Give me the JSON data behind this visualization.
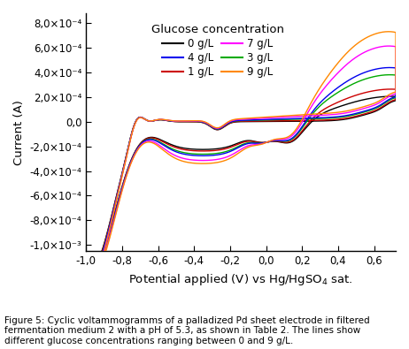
{
  "xlabel": "Potential applied (V) vs Hg/HgSO$_4$ sat.",
  "ylabel": "Current (A)",
  "xlim": [
    -1.0,
    0.72
  ],
  "ylim": [
    -0.00105,
    0.00088
  ],
  "xticks": [
    -1.0,
    -0.8,
    -0.6,
    -0.4,
    -0.2,
    0.0,
    0.2,
    0.4,
    0.6
  ],
  "yticks": [
    -0.001,
    -0.0008,
    -0.0006,
    -0.0004,
    -0.0002,
    0.0,
    0.0002,
    0.0004,
    0.0006,
    0.0008
  ],
  "xtick_labels": [
    "-1,0",
    "-0,8",
    "-0,6",
    "-0,4",
    "-0,2",
    "0,0",
    "0,2",
    "0,4",
    "0,6"
  ],
  "legend_title": "Glucose concentration",
  "legend_entries": [
    [
      "0 g/L",
      "#000000"
    ],
    [
      "4 g/L",
      "#0000ee"
    ],
    [
      "1 g/L",
      "#cc0000"
    ],
    [
      "7 g/L",
      "#ff00ff"
    ],
    [
      "3 g/L",
      "#00aa00"
    ],
    [
      "9 g/L",
      "#ff8800"
    ]
  ],
  "glucose_levels": [
    0,
    1,
    3,
    4,
    7,
    9
  ],
  "colors": {
    "0": "#000000",
    "1": "#cc0000",
    "3": "#00aa00",
    "4": "#0000ee",
    "7": "#ff00ff",
    "9": "#ff8800"
  },
  "caption": "Figure 5: Cyclic voltammogramms of a palladized Pd sheet electrode in filtered\nfermentation medium 2 with a pH of 5.3, as shown in Table 2. The lines show\ndifferent glucose concentrations ranging between 0 and 9 g/L.",
  "background_color": "#ffffff",
  "figsize": [
    4.62,
    3.95
  ],
  "dpi": 100
}
